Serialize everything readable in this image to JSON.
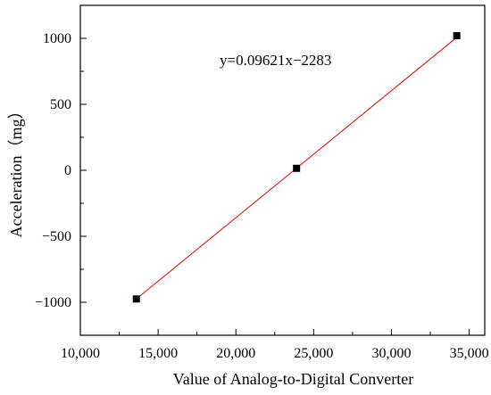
{
  "chart_data": {
    "type": "scatter",
    "title": "",
    "xlabel": "Value of Analog-to-Digital Converter",
    "ylabel": "Acceleration（mg）",
    "xlim": [
      10000,
      36000
    ],
    "ylim": [
      -1250,
      1250
    ],
    "x_ticks": [
      10000,
      15000,
      20000,
      25000,
      30000,
      35000
    ],
    "x_tick_labels": [
      "10,000",
      "15,000",
      "20,000",
      "25,000",
      "30,000",
      "35,000"
    ],
    "y_ticks": [
      -1000,
      -500,
      0,
      500,
      1000
    ],
    "y_tick_labels": [
      "−1000",
      "−500",
      "0",
      "500",
      "1000"
    ],
    "grid": false,
    "series": [
      {
        "type": "scatter",
        "marker": "square",
        "color": "#000000",
        "points": [
          {
            "x": 13600,
            "y": -975
          },
          {
            "x": 23900,
            "y": 15
          },
          {
            "x": 34200,
            "y": 1020
          }
        ]
      }
    ],
    "fit_line": {
      "color": "#e00000",
      "slope": 0.09621,
      "intercept": -2283,
      "x_range": [
        13600,
        34200
      ]
    },
    "annotations": [
      {
        "text": "y=0.09621x−2283"
      }
    ]
  }
}
